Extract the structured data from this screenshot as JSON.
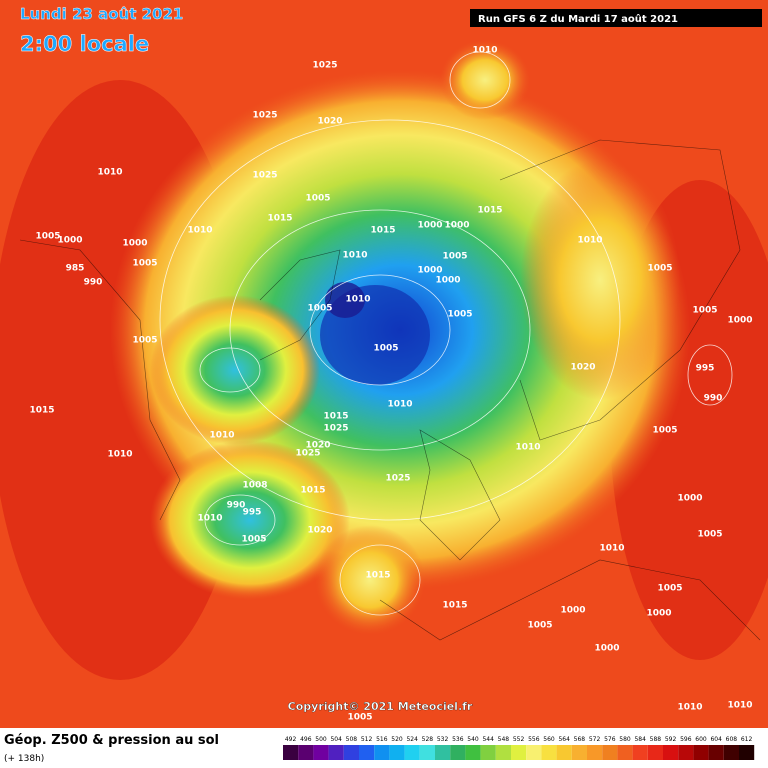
{
  "header": {
    "date": "Lundi 23 août 2021",
    "time": "2:00 locale",
    "run": "Run GFS 6 Z du Mardi 17 août 2021"
  },
  "copyright": "Copyright© 2021 Meteociel.fr",
  "footer": {
    "title": "Géop. Z500 & pression au sol",
    "lead": "(+ 138h)"
  },
  "colorbar": {
    "values": [
      492,
      496,
      500,
      504,
      508,
      512,
      516,
      520,
      524,
      528,
      532,
      536,
      540,
      544,
      548,
      552,
      556,
      560,
      564,
      568,
      572,
      576,
      580,
      584,
      588,
      592,
      596,
      600,
      604,
      608,
      612
    ],
    "colors": [
      "#3a0040",
      "#5a0070",
      "#7000a0",
      "#5020c0",
      "#3040e0",
      "#2060f0",
      "#1090f0",
      "#10b0f0",
      "#20d0f0",
      "#40e0e0",
      "#30c0a0",
      "#30b060",
      "#40c040",
      "#80d040",
      "#b0e040",
      "#e0f040",
      "#f8f070",
      "#f8e040",
      "#f8c830",
      "#f8b030",
      "#f89828",
      "#f08020",
      "#f06020",
      "#f04020",
      "#e82818",
      "#d81010",
      "#b80808",
      "#900000",
      "#680000",
      "#400000",
      "#200000"
    ]
  },
  "isobar_labels": [
    "1010",
    "1025",
    "1025",
    "1020",
    "1010",
    "1005",
    "1010",
    "1015",
    "1010",
    "1015",
    "1000",
    "1000",
    "1005",
    "1000",
    "1000",
    "1005",
    "1010",
    "1005",
    "1015",
    "1010",
    "1000",
    "1005",
    "985",
    "990",
    "1000",
    "1005",
    "1005",
    "1025",
    "1020",
    "1005",
    "1005",
    "1000",
    "995",
    "990",
    "1015",
    "1010",
    "1020",
    "1015",
    "1025",
    "1010",
    "1010",
    "1008",
    "990",
    "995",
    "1010",
    "1005",
    "1015",
    "1025",
    "1020",
    "1015",
    "1025",
    "1010",
    "1005",
    "1005",
    "1000",
    "1010",
    "1005",
    "1000",
    "1015",
    "1005",
    "1000",
    "1000",
    "1005",
    "1010",
    "1005",
    "1010"
  ]
}
